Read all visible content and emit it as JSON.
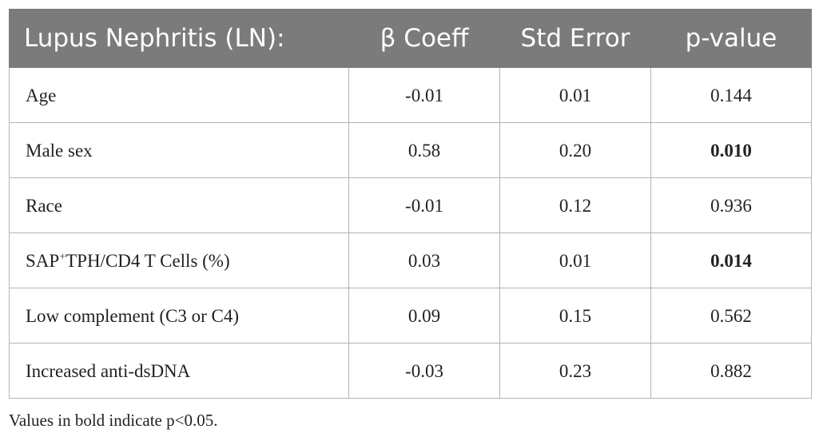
{
  "table": {
    "headers": [
      "Lupus Nephritis (LN):",
      "β Coeff",
      "Std Error",
      "p-value"
    ],
    "rows": [
      {
        "label": "Age",
        "coeff": "-0.01",
        "se": "0.01",
        "p": "0.144",
        "p_bold": false
      },
      {
        "label": "Male sex",
        "coeff": "0.58",
        "se": "0.20",
        "p": "0.010",
        "p_bold": true
      },
      {
        "label": "Race",
        "coeff": "-0.01",
        "se": "0.12",
        "p": "0.936",
        "p_bold": false
      },
      {
        "label_pre": "SAP",
        "label_sup": "+",
        "label_post": "TPH/CD4 T Cells (%)",
        "coeff": "0.03",
        "se": "0.01",
        "p": "0.014",
        "p_bold": true
      },
      {
        "label": "Low complement (C3 or C4)",
        "coeff": "0.09",
        "se": "0.15",
        "p": "0.562",
        "p_bold": false
      },
      {
        "label": "Increased anti-dsDNA",
        "coeff": "-0.03",
        "se": "0.23",
        "p": "0.882",
        "p_bold": false
      }
    ]
  },
  "footnote": "Values in bold indicate p<0.05.",
  "colors": {
    "header_bg": "#7b7b7b",
    "header_text": "#ffffff",
    "border": "#b4b4b4"
  }
}
